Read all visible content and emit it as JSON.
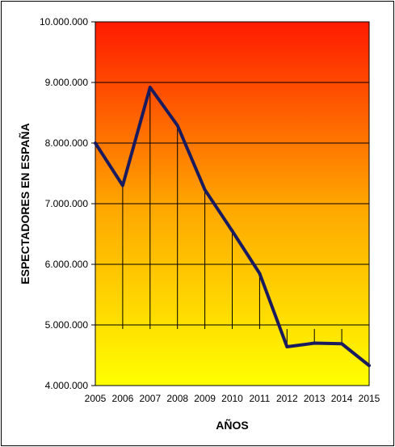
{
  "chart_data": {
    "type": "line",
    "title": "",
    "xlabel": "AÑOS",
    "ylabel": "ESPECTADORES EN ESPAÑA",
    "categories": [
      "2005",
      "2006",
      "2007",
      "2008",
      "2009",
      "2010",
      "2011",
      "2012",
      "2013",
      "2014",
      "2015"
    ],
    "series": [
      {
        "values": [
          8000000,
          7300000,
          8920000,
          8290000,
          7230000,
          6550000,
          5850000,
          4640000,
          4700000,
          4690000,
          4330000
        ]
      }
    ],
    "ylim": [
      4000000,
      10000000
    ],
    "yticks": [
      4000000,
      5000000,
      6000000,
      7000000,
      8000000,
      9000000,
      10000000
    ],
    "ytick_labels": [
      "4.000.000",
      "5.000.000",
      "6.000.000",
      "7.000.000",
      "8.000.000",
      "9.000.000",
      "10.000.000"
    ],
    "grid": true,
    "drop_lines": true,
    "legend": "none",
    "colors": {
      "line": "#1a1a5e",
      "background_top": "#ff1a00",
      "background_mid": "#ffa500",
      "background_bottom": "#ffff00",
      "grid": "#000000"
    }
  }
}
